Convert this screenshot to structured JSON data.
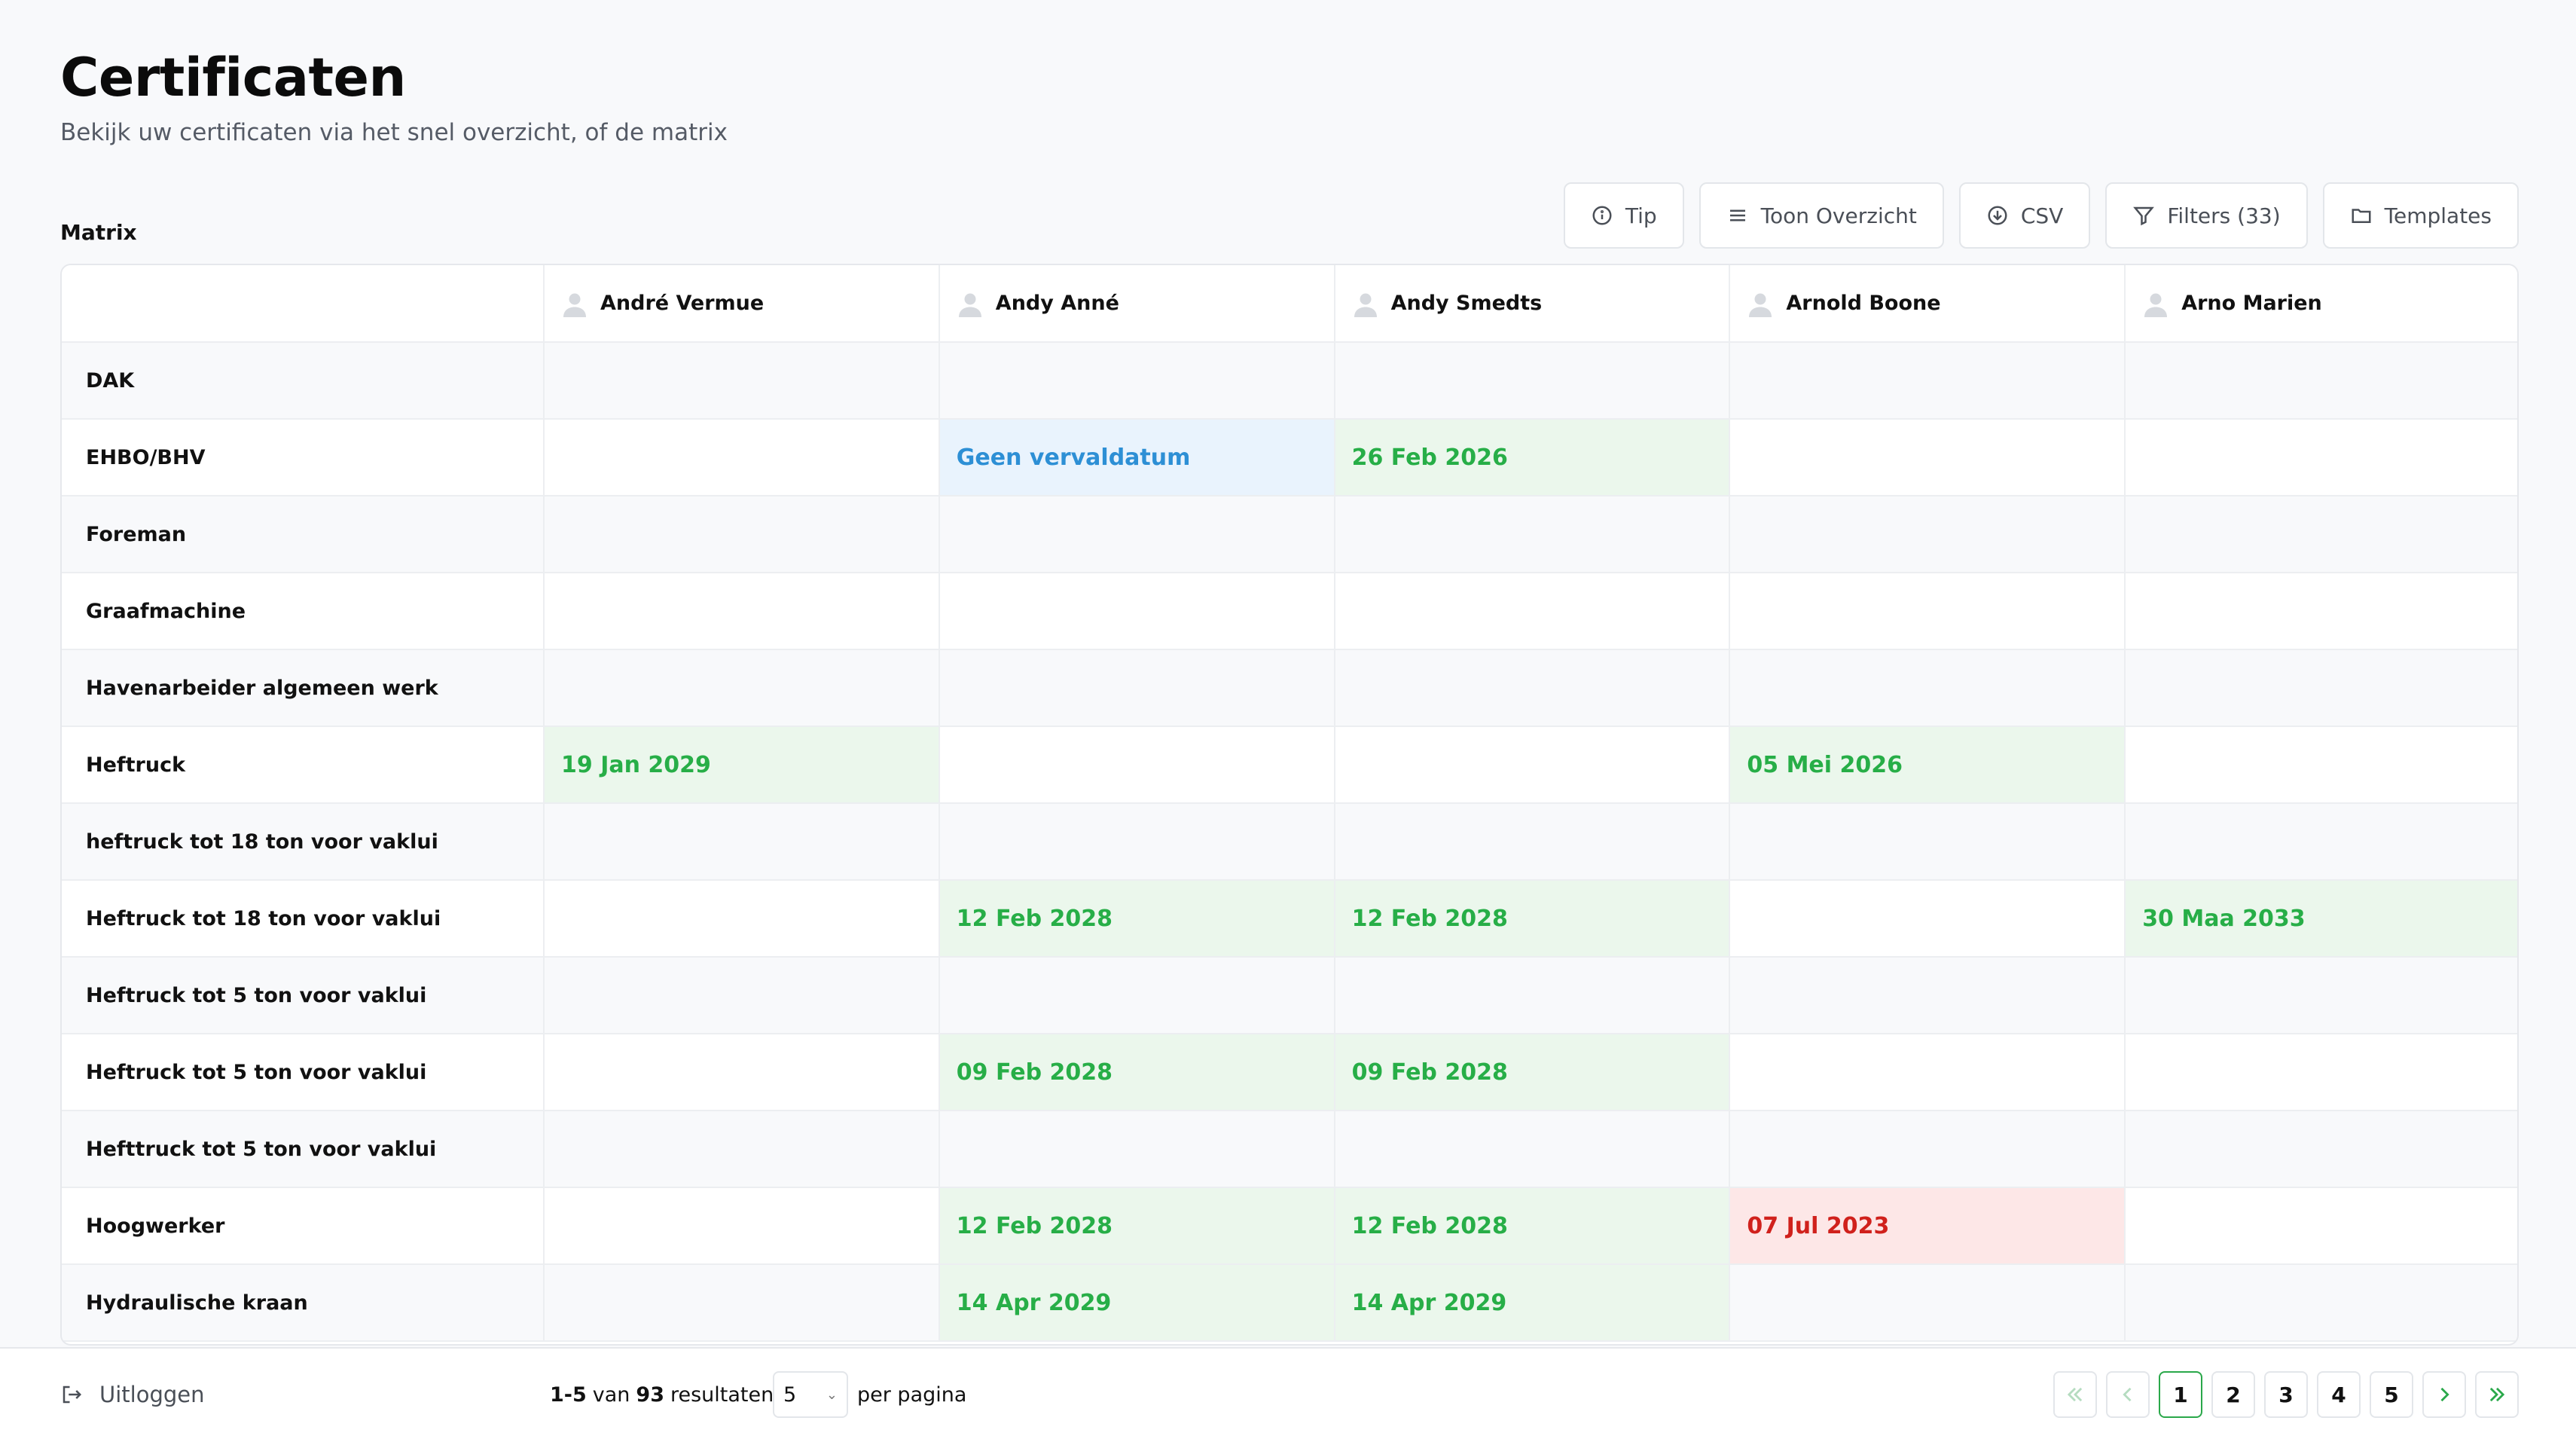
{
  "header": {
    "title": "Certificaten",
    "subtitle": "Bekijk uw certificaten via het snel overzicht, of de matrix",
    "section_label": "Matrix"
  },
  "toolbar": {
    "tip": "Tip",
    "overview": "Toon Overzicht",
    "csv": "CSV",
    "filters": "Filters (33)",
    "templates": "Templates"
  },
  "matrix": {
    "people": [
      "André Vermue",
      "Andy Anné",
      "Andy Smedts",
      "Arnold Boone",
      "Arno Marien"
    ],
    "rows": [
      {
        "label": "DAK",
        "cells": [
          "",
          "",
          "",
          "",
          ""
        ]
      },
      {
        "label": "EHBO/BHV",
        "cells": [
          "",
          "Geen vervaldatum",
          "26 Feb 2026",
          "",
          ""
        ]
      },
      {
        "label": "Foreman",
        "cells": [
          "",
          "",
          "",
          "",
          ""
        ]
      },
      {
        "label": "Graafmachine",
        "cells": [
          "",
          "",
          "",
          "",
          ""
        ]
      },
      {
        "label": "Havenarbeider algemeen werk",
        "cells": [
          "",
          "",
          "",
          "",
          ""
        ]
      },
      {
        "label": "Heftruck",
        "cells": [
          "19 Jan 2029",
          "",
          "",
          "05 Mei 2026",
          ""
        ]
      },
      {
        "label": "heftruck tot 18 ton voor vaklui",
        "cells": [
          "",
          "",
          "",
          "",
          ""
        ]
      },
      {
        "label": "Heftruck tot 18 ton voor vaklui",
        "cells": [
          "",
          "12 Feb 2028",
          "12 Feb 2028",
          "",
          "30 Maa 2033"
        ]
      },
      {
        "label": "Heftruck tot 5 ton  voor vaklui",
        "cells": [
          "",
          "",
          "",
          "",
          ""
        ]
      },
      {
        "label": "Heftruck tot 5 ton voor vaklui",
        "cells": [
          "",
          "09 Feb 2028",
          "09 Feb 2028",
          "",
          ""
        ]
      },
      {
        "label": "Hefttruck tot 5 ton voor vaklui",
        "cells": [
          "",
          "",
          "",
          "",
          ""
        ]
      },
      {
        "label": "Hoogwerker",
        "cells": [
          "",
          "12 Feb 2028",
          "12 Feb 2028",
          "07 Jul 2023",
          ""
        ]
      },
      {
        "label": "Hydraulische kraan",
        "cells": [
          "",
          "14 Apr 2029",
          "14 Apr 2029",
          "",
          ""
        ]
      }
    ],
    "statuses": [
      [
        "",
        "",
        "",
        "",
        ""
      ],
      [
        "",
        "blue",
        "green",
        "",
        ""
      ],
      [
        "",
        "",
        "",
        "",
        ""
      ],
      [
        "",
        "",
        "",
        "",
        ""
      ],
      [
        "",
        "",
        "",
        "",
        ""
      ],
      [
        "green",
        "",
        "",
        "green",
        ""
      ],
      [
        "",
        "",
        "",
        "",
        ""
      ],
      [
        "",
        "green",
        "green",
        "",
        "green"
      ],
      [
        "",
        "",
        "",
        "",
        ""
      ],
      [
        "",
        "green",
        "green",
        "",
        ""
      ],
      [
        "",
        "",
        "",
        "",
        ""
      ],
      [
        "",
        "green",
        "green",
        "red",
        ""
      ],
      [
        "",
        "green",
        "green",
        "",
        ""
      ]
    ]
  },
  "footer": {
    "logout": "Uitloggen",
    "range": "1-5",
    "of": "van",
    "total": "93",
    "results": "resultaten",
    "per_page_value": "5",
    "per_page_label": "per pagina",
    "pages": [
      "1",
      "2",
      "3",
      "4",
      "5"
    ],
    "current_page": "1"
  },
  "colors": {
    "valid": "#27ae47",
    "no_expiry": "#2d8fd5",
    "expired": "#d0211c"
  }
}
